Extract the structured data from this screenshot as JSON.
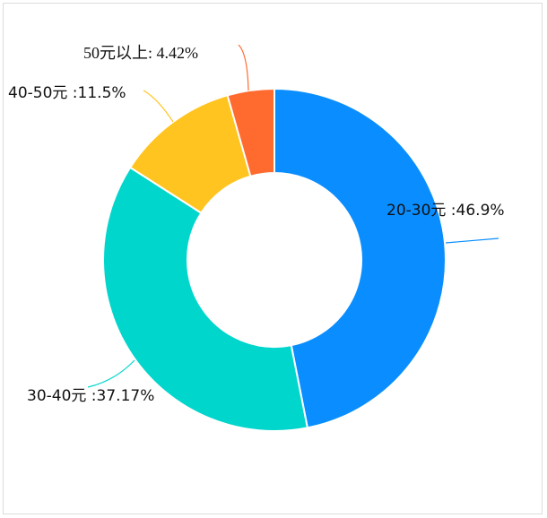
{
  "chart_data": {
    "type": "pie",
    "variant": "donut",
    "start_angle": "top",
    "direction": "clockwise",
    "legend": "none",
    "slices": [
      {
        "label": "20-30元",
        "value": 46.9,
        "text": "20-30元 :46.9%",
        "color": "#0A8EFF"
      },
      {
        "label": "30-40元",
        "value": 37.17,
        "text": "30-40元 :37.17%",
        "color": "#00D6CC"
      },
      {
        "label": "40-50元",
        "value": 11.5,
        "text": "40-50元 :11.5%",
        "color": "#FFC41F"
      },
      {
        "label": "50元以上",
        "value": 4.42,
        "text": "50元以上: 4.42%",
        "color": "#FF6A2E"
      }
    ]
  }
}
